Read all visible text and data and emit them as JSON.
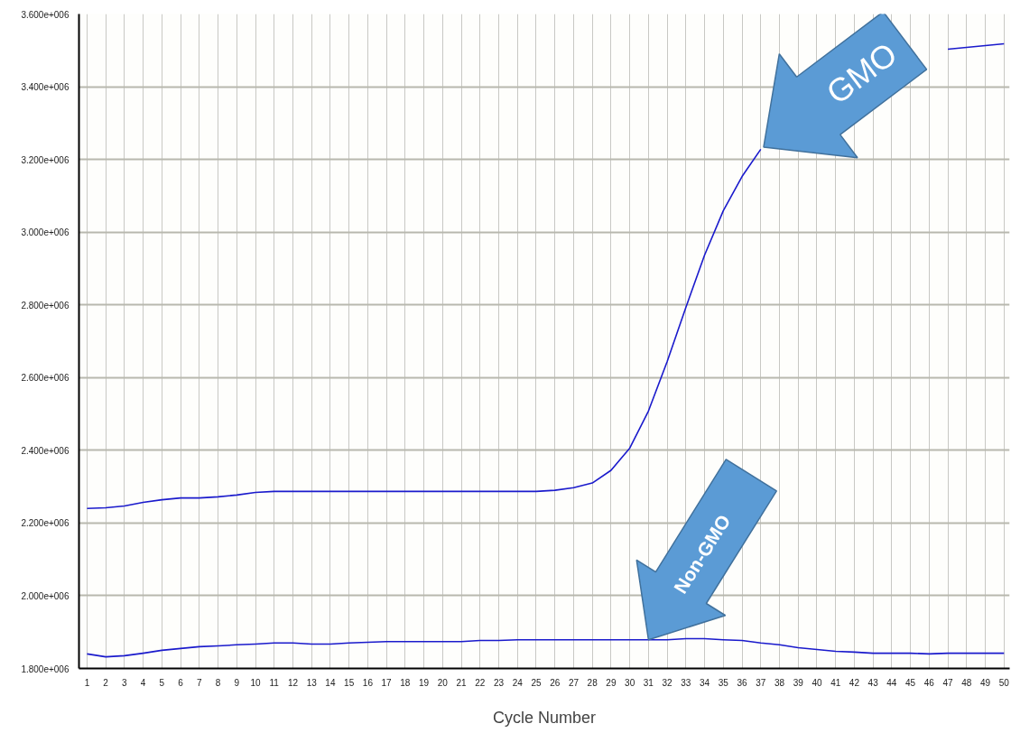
{
  "chart_data": {
    "type": "line",
    "xlabel": "Cycle Number",
    "x": [
      1,
      2,
      3,
      4,
      5,
      6,
      7,
      8,
      9,
      10,
      11,
      12,
      13,
      14,
      15,
      16,
      17,
      18,
      19,
      20,
      21,
      22,
      23,
      24,
      25,
      26,
      27,
      28,
      29,
      30,
      31,
      32,
      33,
      34,
      35,
      36,
      37,
      38,
      39,
      40,
      41,
      42,
      43,
      44,
      45,
      46,
      47,
      48,
      49,
      50
    ],
    "series": [
      {
        "color": "#1a1acc",
        "values": [
          2240000,
          2242000,
          2247000,
          2257000,
          2264000,
          2269000,
          2269000,
          2272000,
          2277000,
          2284000,
          2287000,
          2287000,
          2287000,
          2287000,
          2287000,
          2287000,
          2287000,
          2287000,
          2287000,
          2287000,
          2287000,
          2287000,
          2287000,
          2287000,
          2287000,
          2290000,
          2297000,
          2310000,
          2345000,
          2406000,
          2508000,
          2644000,
          2793000,
          2937000,
          3059000,
          3153000,
          3228000,
          null,
          null,
          null,
          null,
          null,
          null,
          null,
          null,
          null,
          3503000,
          3508000,
          3513000,
          3518000
        ]
      },
      {
        "color": "#1a1acc",
        "values": [
          1840000,
          1832000,
          1835000,
          1842000,
          1850000,
          1855000,
          1860000,
          1862000,
          1865000,
          1867000,
          1870000,
          1870000,
          1867000,
          1867000,
          1870000,
          1872000,
          1874000,
          1874000,
          1874000,
          1874000,
          1874000,
          1877000,
          1877000,
          1879000,
          1879000,
          1879000,
          1879000,
          1879000,
          1879000,
          1879000,
          1879000,
          1879000,
          1882000,
          1882000,
          1879000,
          1877000,
          1870000,
          1865000,
          1857000,
          1852000,
          1847000,
          1845000,
          1842000,
          1842000,
          1842000,
          1840000,
          1842000,
          1842000,
          1842000,
          1842000
        ]
      }
    ],
    "xlim": [
      0.57,
      50.3
    ],
    "xticks": [
      1,
      2,
      3,
      4,
      5,
      6,
      7,
      8,
      9,
      10,
      11,
      12,
      13,
      14,
      15,
      16,
      17,
      18,
      19,
      20,
      21,
      22,
      23,
      24,
      25,
      26,
      27,
      28,
      29,
      30,
      31,
      32,
      33,
      34,
      35,
      36,
      37,
      38,
      39,
      40,
      41,
      42,
      43,
      44,
      45,
      46,
      47,
      48,
      49,
      50
    ],
    "ylim": [
      1800000,
      3600000
    ],
    "yticks": [
      {
        "value": 1800000,
        "label": "1.800e+006"
      },
      {
        "value": 2000000,
        "label": "2.000e+006"
      },
      {
        "value": 2200000,
        "label": "2.200e+006"
      },
      {
        "value": 2400000,
        "label": "2.400e+006"
      },
      {
        "value": 2600000,
        "label": "2.600e+006"
      },
      {
        "value": 2800000,
        "label": "2.800e+006"
      },
      {
        "value": 3000000,
        "label": "3.000e+006"
      },
      {
        "value": 3200000,
        "label": "3.200e+006"
      },
      {
        "value": 3400000,
        "label": "3.400e+006"
      },
      {
        "value": 3600000,
        "label": "3.600e+006"
      }
    ],
    "grid": true,
    "marker": "none",
    "line_style": "solid",
    "annotations": [
      {
        "text": "GMO",
        "x": 37,
        "y": 3228000
      },
      {
        "text": "Non-GMO",
        "x": 31,
        "y": 1879000
      }
    ]
  }
}
